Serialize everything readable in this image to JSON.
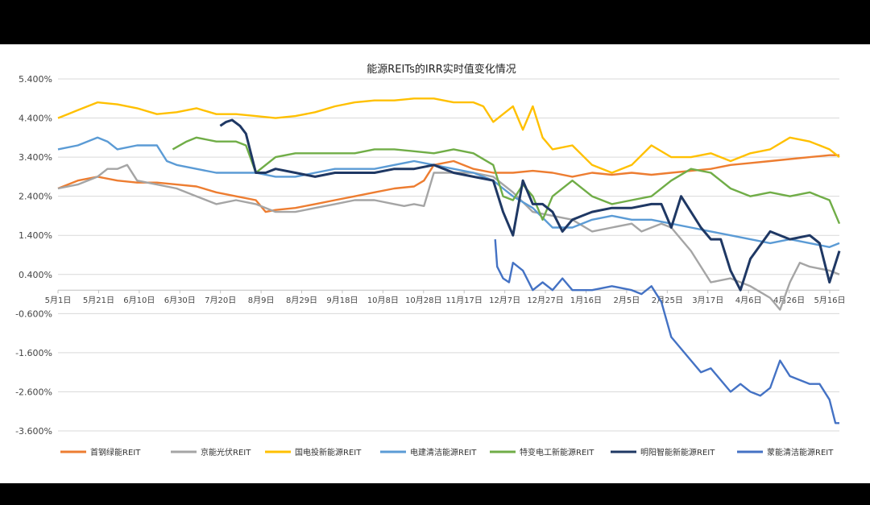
{
  "chart_data": {
    "type": "line",
    "title": "能源REITs的IRR实时值变化情况",
    "xlabel": "",
    "ylabel": "",
    "ylim": [
      -3.6,
      5.4
    ],
    "y_ticks": [
      "5.400%",
      "4.400%",
      "3.400%",
      "2.400%",
      "1.400%",
      "0.400%",
      "-0.600%",
      "-1.600%",
      "-2.600%",
      "-3.600%"
    ],
    "x_ticks": [
      "5月1日",
      "5月21日",
      "6月10日",
      "6月30日",
      "7月20日",
      "8月9日",
      "8月29日",
      "9月18日",
      "10月8日",
      "10月28日",
      "11月17日",
      "12月7日",
      "12月27日",
      "1月16日",
      "2月5日",
      "2月25日",
      "3月17日",
      "4月6日",
      "4月26日",
      "5月16日"
    ],
    "x_range": [
      0,
      395
    ],
    "grid": true,
    "legend_position": "bottom",
    "series": [
      {
        "name": "首钢绿能REIT",
        "color": "#ED7D31",
        "x": [
          0,
          10,
          20,
          30,
          40,
          50,
          60,
          70,
          80,
          90,
          100,
          105,
          110,
          120,
          130,
          140,
          150,
          160,
          170,
          180,
          185,
          190,
          200,
          210,
          220,
          230,
          240,
          250,
          260,
          270,
          280,
          290,
          300,
          310,
          320,
          330,
          340,
          350,
          360,
          370,
          380,
          390,
          395
        ],
        "y": [
          2.6,
          2.8,
          2.9,
          2.8,
          2.75,
          2.75,
          2.7,
          2.65,
          2.5,
          2.4,
          2.3,
          2.0,
          2.05,
          2.1,
          2.2,
          2.3,
          2.4,
          2.5,
          2.6,
          2.65,
          2.8,
          3.2,
          3.3,
          3.1,
          3.0,
          3.0,
          3.05,
          3.0,
          2.9,
          3.0,
          2.95,
          3.0,
          2.95,
          3.0,
          3.05,
          3.1,
          3.2,
          3.25,
          3.3,
          3.35,
          3.4,
          3.45,
          3.45
        ]
      },
      {
        "name": "京能光伏REIT",
        "color": "#A5A5A5",
        "x": [
          0,
          10,
          20,
          25,
          30,
          35,
          40,
          50,
          60,
          70,
          80,
          90,
          100,
          110,
          120,
          130,
          140,
          150,
          160,
          170,
          175,
          180,
          185,
          190,
          200,
          210,
          220,
          230,
          240,
          250,
          260,
          270,
          280,
          290,
          295,
          300,
          305,
          310,
          320,
          330,
          340,
          350,
          360,
          365,
          370,
          375,
          380,
          390,
          395
        ],
        "y": [
          2.6,
          2.7,
          2.9,
          3.1,
          3.1,
          3.2,
          2.8,
          2.7,
          2.6,
          2.4,
          2.2,
          2.3,
          2.2,
          2.0,
          2.0,
          2.1,
          2.2,
          2.3,
          2.3,
          2.2,
          2.15,
          2.2,
          2.15,
          3.0,
          3.0,
          3.0,
          2.9,
          2.5,
          2.0,
          1.9,
          1.8,
          1.5,
          1.6,
          1.7,
          1.5,
          1.6,
          1.7,
          1.6,
          1.0,
          0.2,
          0.3,
          0.1,
          -0.2,
          -0.5,
          0.2,
          0.7,
          0.6,
          0.5,
          0.4
        ]
      },
      {
        "name": "国电投新能源REIT",
        "color": "#FFC000",
        "x": [
          0,
          5,
          10,
          20,
          30,
          40,
          50,
          60,
          70,
          80,
          90,
          100,
          110,
          120,
          130,
          140,
          150,
          160,
          170,
          180,
          190,
          200,
          210,
          215,
          220,
          225,
          230,
          235,
          240,
          245,
          250,
          260,
          270,
          280,
          290,
          300,
          310,
          320,
          330,
          340,
          350,
          360,
          370,
          380,
          390,
          395
        ],
        "y": [
          4.4,
          4.5,
          4.6,
          4.8,
          4.75,
          4.65,
          4.5,
          4.55,
          4.65,
          4.5,
          4.5,
          4.45,
          4.4,
          4.45,
          4.55,
          4.7,
          4.8,
          4.85,
          4.85,
          4.9,
          4.9,
          4.8,
          4.8,
          4.7,
          4.3,
          4.5,
          4.7,
          4.1,
          4.7,
          3.9,
          3.6,
          3.7,
          3.2,
          3.0,
          3.2,
          3.7,
          3.4,
          3.4,
          3.5,
          3.3,
          3.5,
          3.6,
          3.9,
          3.8,
          3.6,
          3.4
        ]
      },
      {
        "name": "电建清洁能源REIT",
        "color": "#5B9BD5",
        "x": [
          0,
          10,
          20,
          25,
          30,
          40,
          50,
          55,
          60,
          70,
          80,
          90,
          100,
          110,
          120,
          130,
          140,
          150,
          160,
          170,
          180,
          190,
          200,
          210,
          220,
          225,
          230,
          240,
          250,
          260,
          270,
          280,
          290,
          300,
          310,
          320,
          330,
          340,
          350,
          360,
          370,
          380,
          390,
          395
        ],
        "y": [
          3.6,
          3.7,
          3.9,
          3.8,
          3.6,
          3.7,
          3.7,
          3.3,
          3.2,
          3.1,
          3.0,
          3.0,
          3.0,
          2.9,
          2.9,
          3.0,
          3.1,
          3.1,
          3.1,
          3.2,
          3.3,
          3.2,
          3.1,
          3.0,
          2.8,
          2.6,
          2.4,
          2.1,
          1.6,
          1.6,
          1.8,
          1.9,
          1.8,
          1.8,
          1.7,
          1.6,
          1.5,
          1.4,
          1.3,
          1.2,
          1.3,
          1.2,
          1.1,
          1.2
        ]
      },
      {
        "name": "特变电工新能源REIT",
        "color": "#70AD47",
        "x": [
          58,
          65,
          70,
          80,
          90,
          95,
          100,
          110,
          120,
          130,
          140,
          150,
          160,
          170,
          180,
          190,
          200,
          210,
          220,
          225,
          230,
          235,
          240,
          245,
          250,
          260,
          270,
          280,
          290,
          300,
          310,
          320,
          330,
          340,
          350,
          360,
          370,
          380,
          385,
          390,
          395
        ],
        "y": [
          3.6,
          3.8,
          3.9,
          3.8,
          3.8,
          3.7,
          3.0,
          3.4,
          3.5,
          3.5,
          3.5,
          3.5,
          3.6,
          3.6,
          3.55,
          3.5,
          3.6,
          3.5,
          3.2,
          2.4,
          2.3,
          2.7,
          2.4,
          1.8,
          2.4,
          2.8,
          2.4,
          2.2,
          2.3,
          2.4,
          2.8,
          3.1,
          3.0,
          2.6,
          2.4,
          2.5,
          2.4,
          2.5,
          2.4,
          2.3,
          1.7
        ]
      },
      {
        "name": "明阳智能新能源REIT",
        "color": "#1F3864",
        "x": [
          82,
          85,
          88,
          92,
          95,
          100,
          105,
          110,
          120,
          130,
          140,
          150,
          160,
          170,
          180,
          190,
          200,
          210,
          220,
          225,
          230,
          235,
          240,
          245,
          250,
          255,
          260,
          265,
          270,
          280,
          290,
          300,
          305,
          310,
          315,
          320,
          325,
          330,
          335,
          340,
          345,
          350,
          360,
          370,
          380,
          385,
          390,
          395
        ],
        "y": [
          4.2,
          4.3,
          4.35,
          4.2,
          4.0,
          3.0,
          3.0,
          3.1,
          3.0,
          2.9,
          3.0,
          3.0,
          3.0,
          3.1,
          3.1,
          3.2,
          3.0,
          2.9,
          2.8,
          2.0,
          1.4,
          2.8,
          2.2,
          2.2,
          2.0,
          1.5,
          1.8,
          1.9,
          2.0,
          2.1,
          2.1,
          2.2,
          2.2,
          1.6,
          2.4,
          2.0,
          1.6,
          1.3,
          1.3,
          0.5,
          0.0,
          0.8,
          1.5,
          1.3,
          1.4,
          1.2,
          0.2,
          1.0
        ]
      },
      {
        "name": "蒙能清洁能源REIT",
        "color": "#4472C4",
        "x": [
          221,
          222,
          225,
          228,
          230,
          235,
          240,
          245,
          250,
          255,
          260,
          270,
          280,
          290,
          295,
          300,
          305,
          310,
          315,
          320,
          325,
          330,
          335,
          340,
          345,
          350,
          355,
          360,
          365,
          370,
          375,
          380,
          385,
          390,
          393,
          395
        ],
        "y": [
          1.3,
          0.6,
          0.3,
          0.2,
          0.7,
          0.5,
          0.0,
          0.2,
          0.0,
          0.3,
          0.0,
          0.0,
          0.1,
          0.0,
          -0.1,
          0.1,
          -0.3,
          -1.2,
          -1.5,
          -1.8,
          -2.1,
          -2.0,
          -2.3,
          -2.6,
          -2.4,
          -2.6,
          -2.7,
          -2.5,
          -1.8,
          -2.2,
          -2.3,
          -2.4,
          -2.4,
          -2.8,
          -3.4,
          -3.4
        ]
      }
    ]
  }
}
